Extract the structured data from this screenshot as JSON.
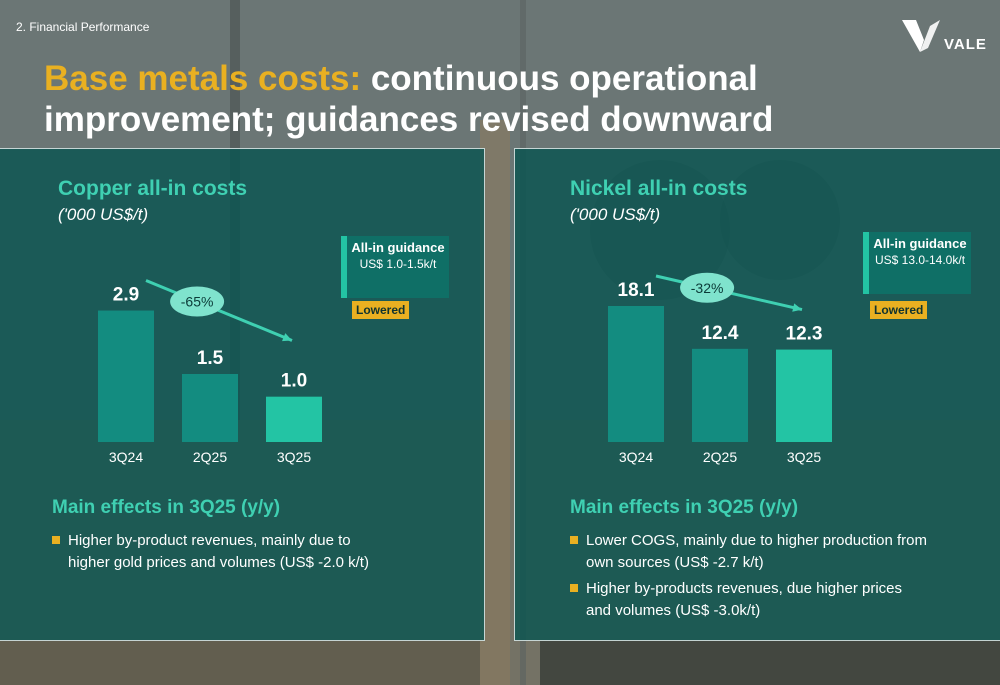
{
  "header": {
    "section": "2. Financial Performance",
    "title_accent": "Base metals costs:",
    "title_rest": " continuous operational improvement; guidances revised downward",
    "logo_text": "VALE"
  },
  "colors": {
    "bar_dark": "#138c80",
    "bar_light": "#23c4a4",
    "accent_gold": "#e9b021",
    "accent_teal": "#3fd0b2"
  },
  "chart_data": [
    {
      "type": "bar",
      "title": "Copper all-in costs",
      "unit": "('000 US$/t)",
      "categories": [
        "3Q24",
        "2Q25",
        "3Q25"
      ],
      "values": [
        2.9,
        1.5,
        1.0
      ],
      "value_labels": [
        "2.9",
        "1.5",
        "1.0"
      ],
      "highlight_index": 2,
      "change_label": "-65%",
      "ylim": [
        0,
        3.0
      ],
      "guidance": {
        "heading": "All-in guidance",
        "range": "US$ 1.0-1.5k/t",
        "status": "Lowered"
      }
    },
    {
      "type": "bar",
      "title": "Nickel all-in costs",
      "unit": "('000 US$/t)",
      "categories": [
        "3Q24",
        "2Q25",
        "3Q25"
      ],
      "values": [
        18.1,
        12.4,
        12.3
      ],
      "value_labels": [
        "18.1",
        "12.4",
        "12.3"
      ],
      "highlight_index": 2,
      "change_label": "-32%",
      "ylim": [
        0,
        18.1
      ],
      "guidance": {
        "heading": "All-in guidance",
        "range": "US$ 13.0-14.0k/t",
        "status": "Lowered"
      }
    }
  ],
  "effects": [
    {
      "title": "Main effects in 3Q25 (y/y)",
      "items": [
        "Higher by-product revenues, mainly due to higher gold prices and volumes (US$ -2.0 k/t)"
      ]
    },
    {
      "title": "Main effects in 3Q25 (y/y)",
      "items": [
        "Lower COGS, mainly due to higher production from own sources (US$ -2.7 k/t)",
        "Higher by-products revenues, due higher prices and volumes (US$ -3.0k/t)"
      ]
    }
  ]
}
